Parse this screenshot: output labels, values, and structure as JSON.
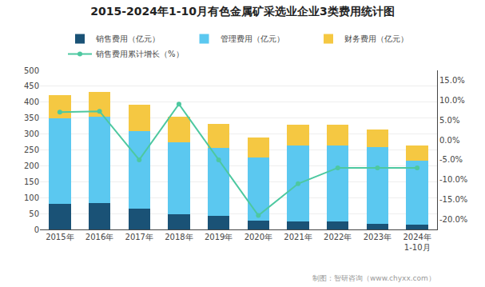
{
  "chart_data": {
    "type": "bar",
    "title": "2015-2024年1-10月有色金属矿采选业企业3类费用统计图",
    "categories": [
      "2015年",
      "2016年",
      "2017年",
      "2018年",
      "2019年",
      "2020年",
      "2021年",
      "2022年",
      "2023年",
      "2024年\n1-10月"
    ],
    "series": [
      {
        "name": "销售费用（亿元）",
        "color": "#1a5276",
        "values": [
          80,
          82,
          65,
          47,
          42,
          28,
          25,
          25,
          18,
          15
        ]
      },
      {
        "name": "管理费用（亿元）",
        "color": "#5bc8f0",
        "values": [
          270,
          273,
          245,
          228,
          215,
          198,
          240,
          240,
          240,
          200
        ]
      },
      {
        "name": "财务费用（亿元）",
        "color": "#f5c842",
        "values": [
          72,
          78,
          83,
          80,
          75,
          62,
          65,
          65,
          55,
          50
        ]
      },
      {
        "name": "销售费用累计增长（%）",
        "type": "line",
        "axis": "y2",
        "marker": "circle",
        "color": "#4dc8a0",
        "values": [
          7.0,
          7.2,
          -5.0,
          9.0,
          -5.0,
          -19.0,
          -11.0,
          -7.0,
          -7.0,
          -7.0
        ]
      }
    ],
    "stacked": true,
    "ylim": [
      0,
      500
    ],
    "yticks": [
      0,
      50,
      100,
      150,
      200,
      250,
      300,
      350,
      400,
      450,
      500
    ],
    "y2lim": [
      -22.5,
      17.5
    ],
    "y2ticks": [
      {
        "value": -20.0,
        "label": "-20.0%"
      },
      {
        "value": -15.0,
        "label": "-15.0%"
      },
      {
        "value": -10.0,
        "label": "-10.0%"
      },
      {
        "value": -5.0,
        "label": "-5.0%"
      },
      {
        "value": 0.0,
        "label": "0.0%"
      },
      {
        "value": 5.0,
        "label": "5.0%"
      },
      {
        "value": 10.0,
        "label": "10.0%"
      },
      {
        "value": 15.0,
        "label": "15.0%"
      }
    ],
    "grid": true,
    "legend": "top",
    "annotations": [
      "制图：智研咨询（www.chyxx.com）"
    ]
  }
}
